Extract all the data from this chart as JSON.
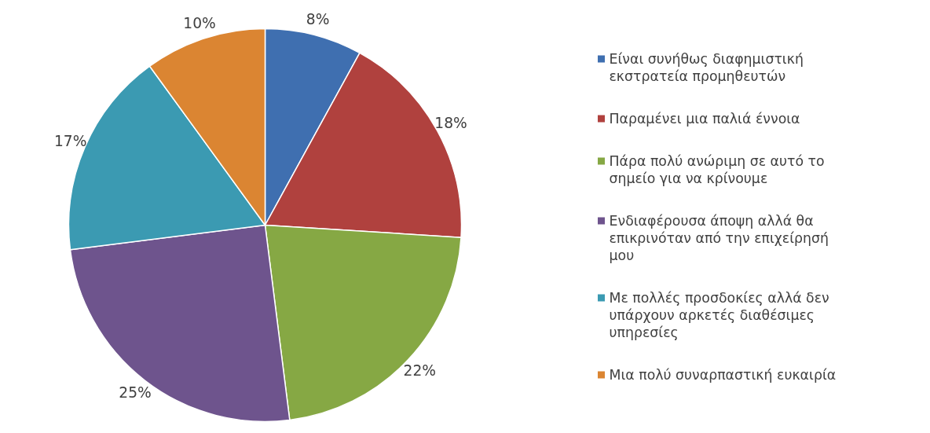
{
  "chart_data": {
    "type": "pie",
    "categories": [
      "Είναι συνήθως διαφημιστική εκστρατεία προμηθευτών",
      "Παραμένει μια παλιά έννοια",
      "Πάρα πολύ ανώριμη σε αυτό το σημείο για να κρίνουμε",
      "Ενδιαφέρουσα άποψη αλλά θα επικρινόταν από την επιχείρησή μου",
      "Με πολλές προσδοκίες αλλά δεν υπάρχουν αρκετές διαθέσιμες υπηρεσίες",
      "Μια πολύ συναρπαστική ευκαιρία"
    ],
    "values": [
      8,
      18,
      22,
      25,
      17,
      10
    ],
    "value_labels": [
      "8%",
      "18%",
      "22%",
      "25%",
      "17%",
      "10%"
    ],
    "colors": [
      "#3f6fb0",
      "#b0413e",
      "#86a844",
      "#6e548d",
      "#3b9ab2",
      "#db8532"
    ],
    "legend": "right"
  }
}
